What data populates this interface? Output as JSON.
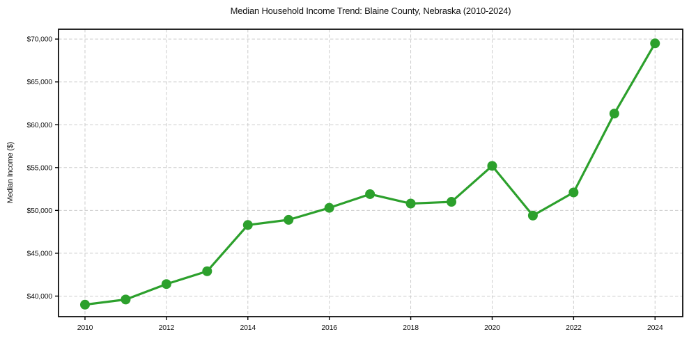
{
  "page": {
    "background_color": "#ffffff"
  },
  "chart_data": {
    "type": "line",
    "title": "Median Household Income Trend: Blaine County, Nebraska (2010-2024)",
    "xlabel": "",
    "ylabel": "Median Income ($)",
    "x": [
      2010,
      2011,
      2012,
      2013,
      2014,
      2015,
      2016,
      2017,
      2018,
      2019,
      2020,
      2021,
      2022,
      2023,
      2024
    ],
    "series": [
      {
        "name": "Median household income",
        "values": [
          39000,
          39600,
          41400,
          42900,
          48300,
          48900,
          50300,
          51900,
          50800,
          51000,
          55200,
          49400,
          52100,
          61300,
          69500
        ],
        "line_color": "#2ca02c",
        "marker": "circle"
      }
    ],
    "xlim": [
      2009.35,
      2024.68
    ],
    "ylim": [
      37600,
      71150
    ],
    "x_ticks": [
      {
        "value": 2010,
        "label": "2010"
      },
      {
        "value": 2012,
        "label": "2012"
      },
      {
        "value": 2014,
        "label": "2014"
      },
      {
        "value": 2016,
        "label": "2016"
      },
      {
        "value": 2018,
        "label": "2018"
      },
      {
        "value": 2020,
        "label": "2020"
      },
      {
        "value": 2022,
        "label": "2022"
      },
      {
        "value": 2024,
        "label": "2024"
      }
    ],
    "y_ticks": [
      {
        "value": 40000,
        "label": "$40,000"
      },
      {
        "value": 45000,
        "label": "$45,000"
      },
      {
        "value": 50000,
        "label": "$50,000"
      },
      {
        "value": 55000,
        "label": "$55,000"
      },
      {
        "value": 60000,
        "label": "$60,000"
      },
      {
        "value": 65000,
        "label": "$65,000"
      },
      {
        "value": 70000,
        "label": "$70,000"
      }
    ],
    "grid": true,
    "grid_style": "dashed",
    "grid_color": "#cccccc",
    "axes_color": "#000000",
    "legend": false
  }
}
